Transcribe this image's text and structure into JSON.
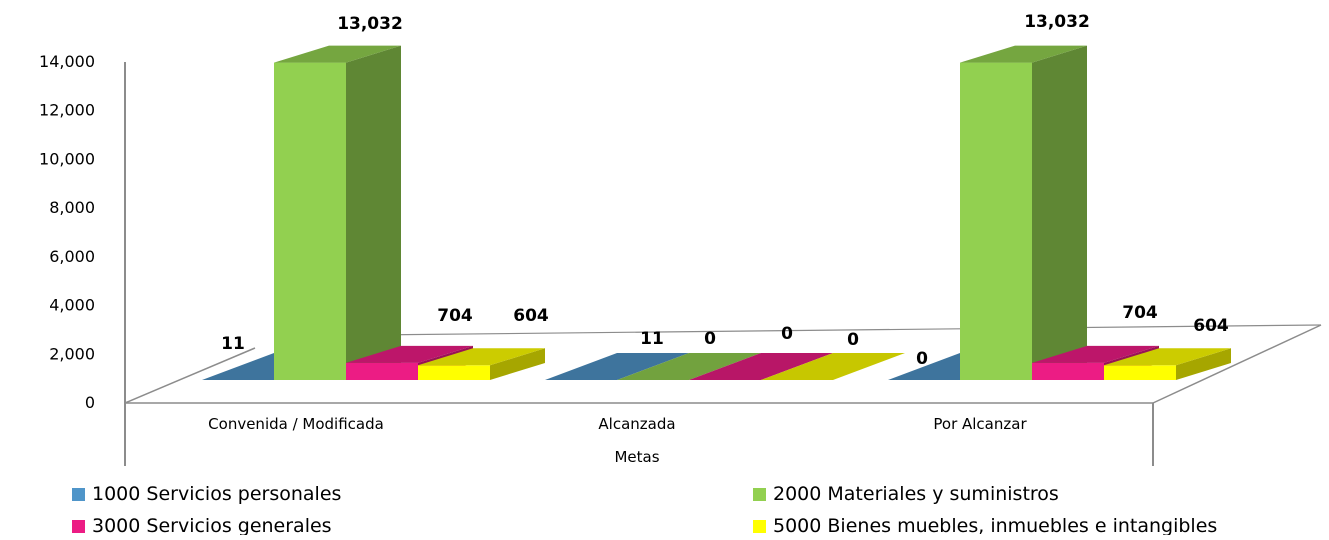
{
  "chart_data": {
    "type": "bar",
    "subtype": "3d-clustered-column",
    "title": "",
    "xlabel": "Metas",
    "ylabel": "",
    "categories": [
      "Convenida / Modificada",
      "Alcanzada",
      "Por Alcanzar"
    ],
    "ylim": [
      0,
      14000
    ],
    "yticks": [
      0,
      2000,
      4000,
      6000,
      8000,
      10000,
      12000,
      14000
    ],
    "ytick_labels": [
      "0",
      "2,000",
      "4,000",
      "6,000",
      "8,000",
      "10,000",
      "12,000",
      "14,000"
    ],
    "grid": false,
    "legend_position": "bottom",
    "series": [
      {
        "name": "1000 Servicios personales",
        "color": "#4f95c9",
        "values": [
          11,
          11,
          0
        ],
        "labels": [
          "11",
          "11",
          "0"
        ]
      },
      {
        "name": "2000 Materiales y suministros",
        "color": "#92d050",
        "values": [
          13032,
          0,
          13032
        ],
        "labels": [
          "13,032",
          "0",
          "13,032"
        ]
      },
      {
        "name": "3000 Servicios generales",
        "color": "#ec1c84",
        "values": [
          704,
          0,
          704
        ],
        "labels": [
          "704",
          "0",
          "704"
        ]
      },
      {
        "name": "5000 Bienes muebles, inmuebles e intangibles",
        "color": "#ffff00",
        "values": [
          604,
          0,
          604
        ],
        "labels": [
          "604",
          "0",
          "604"
        ]
      }
    ]
  }
}
